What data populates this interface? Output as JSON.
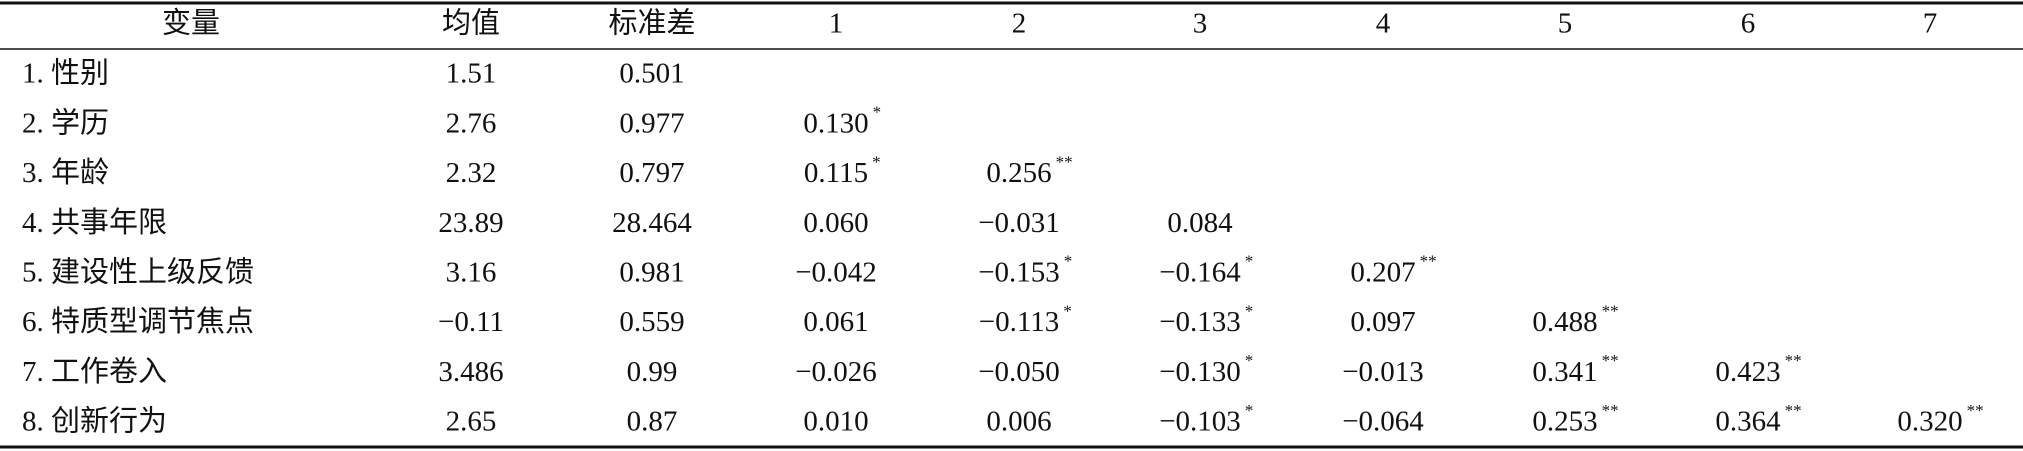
{
  "table": {
    "header": [
      "变量",
      "均值",
      "标准差",
      "1",
      "2",
      "3",
      "4",
      "5",
      "6",
      "7"
    ],
    "rows": [
      {
        "label": "1. 性别",
        "mean": "1.51",
        "sd": "0.501",
        "corr": []
      },
      {
        "label": "2. 学历",
        "mean": "2.76",
        "sd": "0.977",
        "corr": [
          {
            "value": "0.130",
            "sig": "*"
          }
        ]
      },
      {
        "label": "3. 年龄",
        "mean": "2.32",
        "sd": "0.797",
        "corr": [
          {
            "value": "0.115",
            "sig": "*"
          },
          {
            "value": "0.256",
            "sig": "**"
          }
        ]
      },
      {
        "label": "4. 共事年限",
        "mean": "23.89",
        "sd": "28.464",
        "corr": [
          {
            "value": "0.060"
          },
          {
            "value": "−0.031"
          },
          {
            "value": "0.084"
          }
        ]
      },
      {
        "label": "5. 建设性上级反馈",
        "mean": "3.16",
        "sd": "0.981",
        "corr": [
          {
            "value": "−0.042"
          },
          {
            "value": "−0.153",
            "sig": "*"
          },
          {
            "value": "−0.164",
            "sig": "*"
          },
          {
            "value": "0.207",
            "sig": "**"
          }
        ]
      },
      {
        "label": "6. 特质型调节焦点",
        "mean": "−0.11",
        "sd": "0.559",
        "corr": [
          {
            "value": "0.061"
          },
          {
            "value": "−0.113",
            "sig": "*"
          },
          {
            "value": "−0.133",
            "sig": "*"
          },
          {
            "value": "0.097"
          },
          {
            "value": "0.488",
            "sig": "**"
          }
        ]
      },
      {
        "label": "7. 工作卷入",
        "mean": "3.486",
        "sd": "0.99",
        "corr": [
          {
            "value": "−0.026"
          },
          {
            "value": "−0.050"
          },
          {
            "value": "−0.130",
            "sig": "*"
          },
          {
            "value": "−0.013"
          },
          {
            "value": "0.341",
            "sig": "**"
          },
          {
            "value": "0.423",
            "sig": "**"
          }
        ]
      },
      {
        "label": "8. 创新行为",
        "mean": "2.65",
        "sd": "0.87",
        "corr": [
          {
            "value": "0.010"
          },
          {
            "value": "0.006"
          },
          {
            "value": "−0.103",
            "sig": "*"
          },
          {
            "value": "−0.064"
          },
          {
            "value": "0.253",
            "sig": "**"
          },
          {
            "value": "0.364",
            "sig": "**"
          },
          {
            "value": "0.320",
            "sig": "**"
          }
        ]
      }
    ]
  }
}
